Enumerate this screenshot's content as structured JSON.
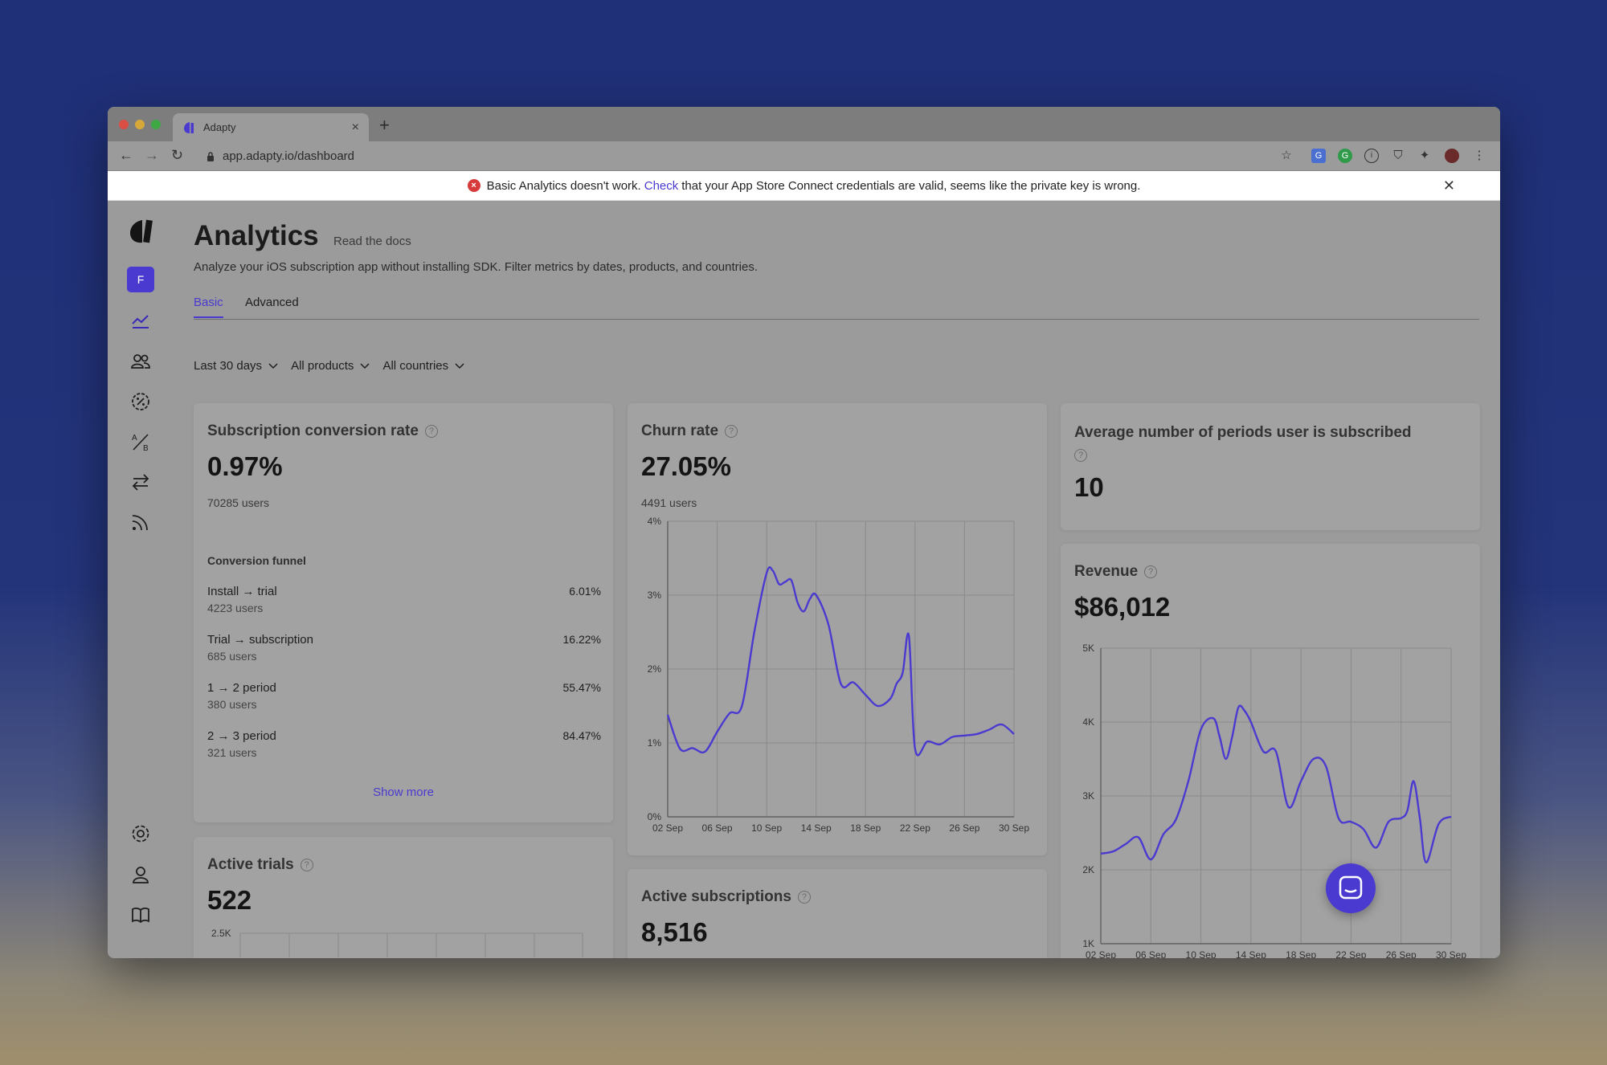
{
  "browser": {
    "tab_title": "Adapty",
    "url": "app.adapty.io/dashboard"
  },
  "banner": {
    "text_before": "Basic Analytics doesn't work.",
    "link": "Check",
    "text_after": "that your App Store Connect credentials are valid, seems like the private key is wrong."
  },
  "sidebar": {
    "workspace_letter": "F"
  },
  "header": {
    "title": "Analytics",
    "docs_link": "Read the docs",
    "subtitle": "Analyze your iOS subscription app without installing SDK. Filter metrics by dates, products, and countries."
  },
  "tabs": [
    "Basic",
    "Advanced"
  ],
  "filters": [
    "Last 30 days",
    "All products",
    "All countries"
  ],
  "cards": {
    "conversion": {
      "title": "Subscription conversion rate",
      "value": "0.97%",
      "users": "70285 users",
      "funnel_title": "Conversion funnel",
      "funnel": [
        {
          "label": "Install → trial",
          "users": "4223 users",
          "pct": "6.01%"
        },
        {
          "label": "Trial → subscription",
          "users": "685 users",
          "pct": "16.22%"
        },
        {
          "label": "1 → 2 period",
          "users": "380 users",
          "pct": "55.47%"
        },
        {
          "label": "2 → 3 period",
          "users": "321 users",
          "pct": "84.47%"
        }
      ],
      "show_more": "Show more"
    },
    "churn": {
      "title": "Churn rate",
      "value": "27.05%",
      "users": "4491 users"
    },
    "avg_periods": {
      "title": "Average number of periods user is subscribed",
      "value": "10"
    },
    "revenue": {
      "title": "Revenue",
      "value": "$86,012"
    },
    "active_trials": {
      "title": "Active trials",
      "value": "522",
      "y_top_label": "2.5K"
    },
    "active_subs": {
      "title": "Active subscriptions",
      "value": "8,516"
    }
  },
  "chart_data": [
    {
      "type": "line",
      "name": "churn",
      "x_ticks": [
        "02 Sep",
        "06 Sep",
        "10 Sep",
        "14 Sep",
        "18 Sep",
        "22 Sep",
        "26 Sep",
        "30 Sep"
      ],
      "y_ticks": [
        "0%",
        "1%",
        "2%",
        "3%",
        "4%"
      ],
      "ylim": [
        0,
        4
      ],
      "x": [
        2,
        3,
        4,
        5,
        6,
        7,
        8,
        9,
        10,
        10.5,
        11,
        11.5,
        12,
        12.5,
        13,
        13.5,
        14,
        15,
        16,
        17,
        18,
        19,
        20,
        20.5,
        21,
        21.5,
        22,
        23,
        24,
        25,
        26,
        27,
        28,
        29,
        30
      ],
      "values": [
        1.38,
        0.92,
        0.93,
        0.88,
        1.15,
        1.4,
        1.5,
        2.5,
        3.3,
        3.33,
        3.15,
        3.18,
        3.2,
        2.9,
        2.78,
        2.95,
        3.0,
        2.6,
        1.8,
        1.82,
        1.65,
        1.5,
        1.6,
        1.8,
        1.95,
        2.45,
        0.92,
        1.02,
        0.98,
        1.08,
        1.1,
        1.12,
        1.18,
        1.25,
        1.12
      ],
      "color": "#4a3ad0"
    },
    {
      "type": "line",
      "name": "revenue",
      "x_ticks": [
        "02 Sep",
        "06 Sep",
        "10 Sep",
        "14 Sep",
        "18 Sep",
        "22 Sep",
        "26 Sep",
        "30 Sep"
      ],
      "y_ticks": [
        "1K",
        "2K",
        "3K",
        "4K",
        "5K"
      ],
      "ylim": [
        1000,
        5000
      ],
      "x": [
        2,
        3,
        4,
        5,
        6,
        7,
        8,
        9,
        10,
        11,
        11.5,
        12,
        12.5,
        13,
        13.5,
        14,
        15,
        16,
        17,
        18,
        19,
        20,
        21,
        22,
        23,
        24,
        25,
        26,
        26.5,
        27,
        27.5,
        28,
        29,
        30
      ],
      "values": [
        2220,
        2250,
        2350,
        2440,
        2140,
        2480,
        2680,
        3200,
        3900,
        4050,
        3800,
        3500,
        3800,
        4200,
        4150,
        4000,
        3600,
        3600,
        2850,
        3200,
        3500,
        3400,
        2700,
        2650,
        2550,
        2300,
        2650,
        2700,
        2800,
        3200,
        2700,
        2100,
        2620,
        2720
      ],
      "color": "#4a3ad0"
    }
  ]
}
